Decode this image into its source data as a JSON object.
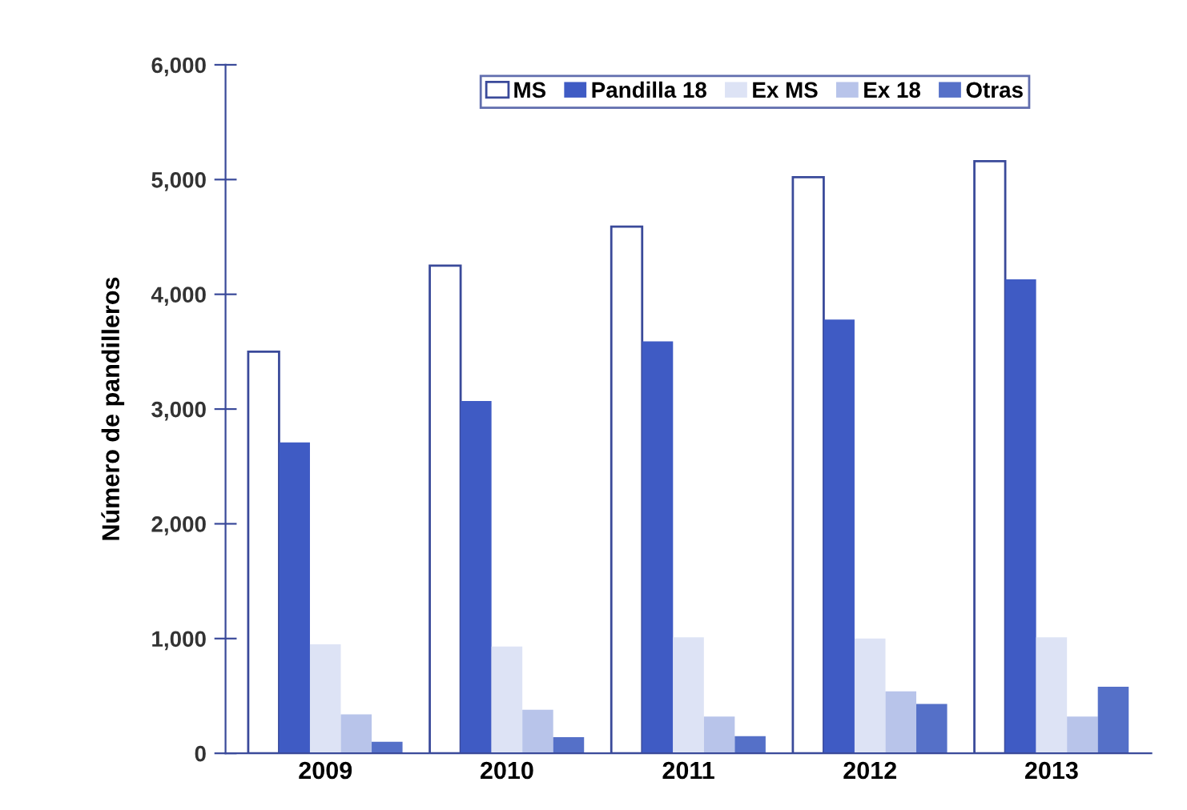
{
  "chart_data": {
    "type": "bar",
    "ylabel": "Número de pandilleros",
    "categories": [
      "2009",
      "2010",
      "2011",
      "2012",
      "2013"
    ],
    "series": [
      {
        "name": "MS",
        "color": "#ffffff",
        "values": [
          3500,
          4250,
          4590,
          5020,
          5160
        ]
      },
      {
        "name": "Pandilla 18",
        "color": "#3f5bc4",
        "values": [
          2710,
          3070,
          3590,
          3780,
          4130
        ]
      },
      {
        "name": "Ex MS",
        "color": "#dde3f5",
        "values": [
          950,
          930,
          1010,
          1000,
          1010
        ]
      },
      {
        "name": "Ex 18",
        "color": "#b8c4ea",
        "values": [
          340,
          380,
          320,
          540,
          320
        ]
      },
      {
        "name": "Otras",
        "color": "#5570c8",
        "values": [
          100,
          140,
          150,
          430,
          580
        ]
      }
    ],
    "ylim": [
      0,
      6000
    ],
    "yticks": [
      {
        "value": 0,
        "label": "0"
      },
      {
        "value": 1000,
        "label": "1,000"
      },
      {
        "value": 2000,
        "label": "2,000"
      },
      {
        "value": 3000,
        "label": "3,000"
      },
      {
        "value": 4000,
        "label": "4,000"
      },
      {
        "value": 5000,
        "label": "5,000"
      },
      {
        "value": 6000,
        "label": "6,000"
      }
    ],
    "grid": false,
    "legend": "top right"
  }
}
